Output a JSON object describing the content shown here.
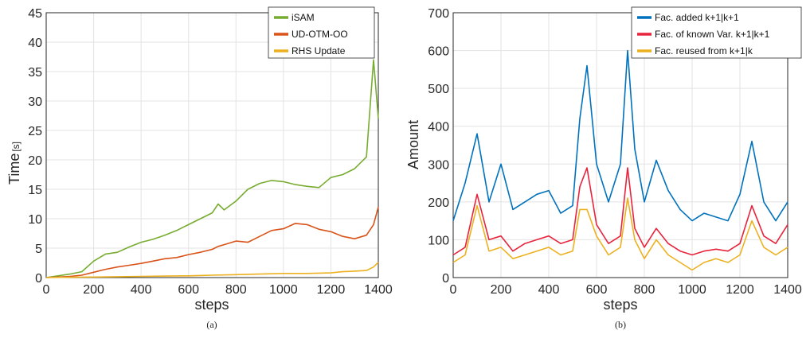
{
  "chart_data": [
    {
      "type": "line",
      "caption": "(a)",
      "xlabel": "steps",
      "ylabel": "Time",
      "ylabel_unit": "[s]",
      "xlim": [
        0,
        1400
      ],
      "ylim": [
        0,
        45
      ],
      "xticks": [
        0,
        200,
        400,
        600,
        800,
        1000,
        1200,
        1400
      ],
      "yticks": [
        0,
        5,
        10,
        15,
        20,
        25,
        30,
        35,
        40,
        45
      ],
      "grid": true,
      "legend_position": "top-right",
      "series": [
        {
          "name": "iSAM",
          "color": "#77AC30",
          "x": [
            0,
            100,
            150,
            200,
            250,
            300,
            350,
            400,
            450,
            500,
            550,
            600,
            650,
            700,
            725,
            750,
            800,
            850,
            900,
            950,
            1000,
            1050,
            1100,
            1150,
            1200,
            1250,
            1300,
            1350,
            1380,
            1400
          ],
          "y": [
            0,
            0.6,
            1.0,
            2.8,
            4.0,
            4.3,
            5.2,
            6.0,
            6.5,
            7.2,
            8.0,
            9.0,
            10.0,
            11.0,
            12.5,
            11.5,
            13.0,
            15.0,
            16.0,
            16.5,
            16.3,
            15.8,
            15.5,
            15.3,
            17.0,
            17.5,
            18.5,
            20.5,
            37.0,
            27.0
          ]
        },
        {
          "name": "UD-OTM-OO",
          "color": "#D95319",
          "x": [
            0,
            100,
            150,
            200,
            250,
            300,
            350,
            400,
            450,
            500,
            550,
            600,
            650,
            700,
            725,
            750,
            800,
            850,
            900,
            950,
            1000,
            1050,
            1100,
            1150,
            1200,
            1250,
            1300,
            1350,
            1380,
            1400
          ],
          "y": [
            0,
            0.2,
            0.4,
            0.9,
            1.4,
            1.8,
            2.1,
            2.4,
            2.8,
            3.2,
            3.4,
            3.9,
            4.3,
            4.8,
            5.3,
            5.6,
            6.2,
            6.0,
            7.0,
            8.0,
            8.3,
            9.2,
            9.0,
            8.2,
            7.8,
            7.0,
            6.6,
            7.2,
            9.0,
            12.0
          ]
        },
        {
          "name": "RHS Update",
          "color": "#EDB120",
          "x": [
            0,
            100,
            200,
            300,
            400,
            500,
            600,
            700,
            800,
            900,
            1000,
            1100,
            1200,
            1250,
            1300,
            1350,
            1380,
            1400
          ],
          "y": [
            0,
            0.05,
            0.1,
            0.15,
            0.2,
            0.25,
            0.3,
            0.4,
            0.5,
            0.6,
            0.7,
            0.7,
            0.8,
            1.0,
            1.1,
            1.2,
            1.8,
            2.6
          ]
        }
      ]
    },
    {
      "type": "line",
      "caption": "(b)",
      "xlabel": "steps",
      "ylabel": "Amount",
      "xlim": [
        0,
        1400
      ],
      "ylim": [
        0,
        700
      ],
      "xticks": [
        0,
        200,
        400,
        600,
        800,
        1000,
        1200,
        1400
      ],
      "yticks": [
        0,
        100,
        200,
        300,
        400,
        500,
        600,
        700
      ],
      "grid": true,
      "legend_position": "top-right",
      "series": [
        {
          "name": "Fac. added k+1|k+1",
          "color": "#0072BD",
          "x": [
            0,
            50,
            100,
            150,
            200,
            250,
            300,
            350,
            400,
            450,
            500,
            530,
            560,
            600,
            650,
            700,
            730,
            760,
            800,
            850,
            900,
            950,
            1000,
            1050,
            1100,
            1150,
            1200,
            1250,
            1300,
            1350,
            1400
          ],
          "y": [
            150,
            250,
            380,
            200,
            300,
            180,
            200,
            220,
            230,
            170,
            190,
            420,
            560,
            300,
            200,
            300,
            600,
            340,
            200,
            310,
            230,
            180,
            150,
            170,
            160,
            150,
            220,
            360,
            200,
            150,
            200
          ]
        },
        {
          "name": "Fac. of known Var. k+1|k+1",
          "color": "#E8243C",
          "x": [
            0,
            50,
            100,
            150,
            200,
            250,
            300,
            350,
            400,
            450,
            500,
            530,
            560,
            600,
            650,
            700,
            730,
            760,
            800,
            850,
            900,
            950,
            1000,
            1050,
            1100,
            1150,
            1200,
            1250,
            1300,
            1350,
            1400
          ],
          "y": [
            60,
            80,
            220,
            100,
            110,
            70,
            90,
            100,
            110,
            90,
            100,
            240,
            290,
            140,
            90,
            110,
            290,
            130,
            80,
            130,
            90,
            70,
            60,
            70,
            75,
            70,
            90,
            190,
            110,
            90,
            140
          ]
        },
        {
          "name": "Fac. reused from k+1|k",
          "color": "#EDB120",
          "x": [
            0,
            50,
            100,
            150,
            200,
            250,
            300,
            350,
            400,
            450,
            500,
            530,
            560,
            600,
            650,
            700,
            730,
            760,
            800,
            850,
            900,
            950,
            1000,
            1050,
            1100,
            1150,
            1200,
            1250,
            1300,
            1350,
            1400
          ],
          "y": [
            40,
            60,
            190,
            70,
            80,
            50,
            60,
            70,
            80,
            60,
            70,
            180,
            180,
            110,
            60,
            80,
            210,
            100,
            50,
            100,
            60,
            40,
            20,
            40,
            50,
            40,
            60,
            150,
            80,
            60,
            80
          ]
        }
      ]
    }
  ]
}
